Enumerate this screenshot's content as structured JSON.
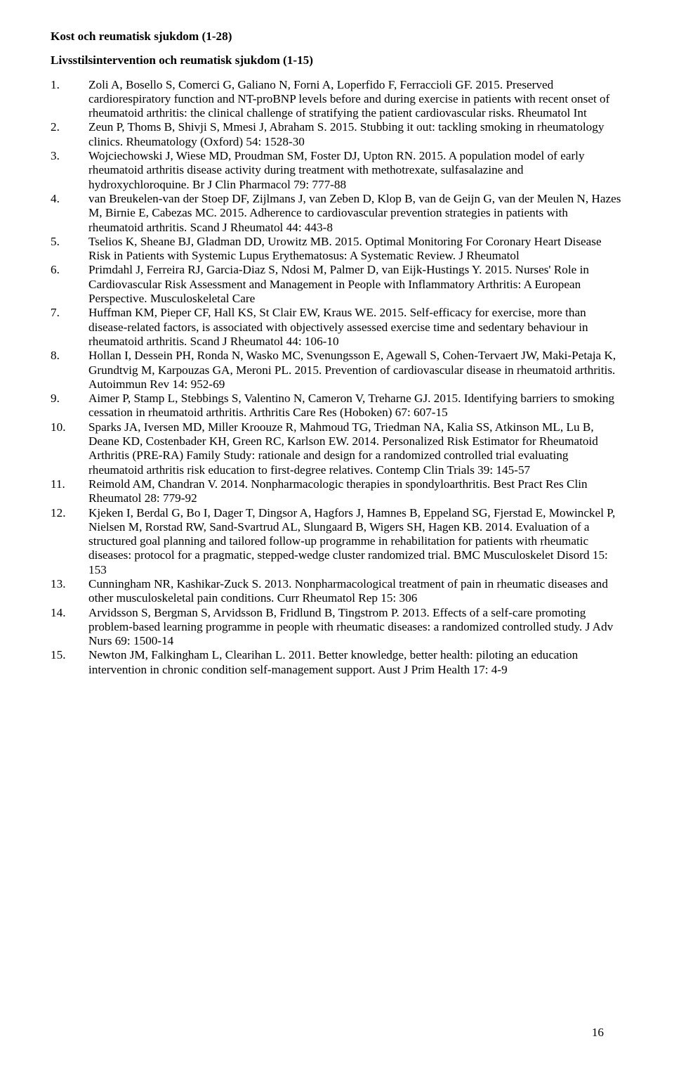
{
  "headings": {
    "main": "Kost och reumatisk sjukdom (1-28)",
    "sub": "Livsstilsintervention och reumatisk sjukdom (1-15)"
  },
  "page_number": "16",
  "references": [
    {
      "num": "1.",
      "text": "Zoli A, Bosello S, Comerci G, Galiano N, Forni A, Loperfido F, Ferraccioli GF. 2015. Preserved cardiorespiratory function and NT-proBNP levels before and during exercise in patients with recent onset of rheumatoid arthritis: the clinical challenge of stratifying the patient cardiovascular risks. Rheumatol Int"
    },
    {
      "num": "2.",
      "text": "Zeun P, Thoms B, Shivji S, Mmesi J, Abraham S. 2015. Stubbing it out: tackling smoking in rheumatology clinics. Rheumatology (Oxford) 54: 1528-30"
    },
    {
      "num": "3.",
      "text": "Wojciechowski J, Wiese MD, Proudman SM, Foster DJ, Upton RN. 2015. A population model of early rheumatoid arthritis disease activity during treatment with methotrexate, sulfasalazine and hydroxychloroquine. Br J Clin Pharmacol 79: 777-88"
    },
    {
      "num": "4.",
      "text": "van Breukelen-van der Stoep DF, Zijlmans J, van Zeben D, Klop B, van de Geijn G, van der Meulen N, Hazes M, Birnie E, Cabezas MC. 2015. Adherence to cardiovascular prevention strategies in patients with rheumatoid arthritis. Scand J Rheumatol 44: 443-8"
    },
    {
      "num": "5.",
      "text": "Tselios K, Sheane BJ, Gladman DD, Urowitz MB. 2015. Optimal Monitoring For Coronary Heart Disease Risk in Patients with Systemic Lupus Erythematosus: A Systematic Review. J Rheumatol"
    },
    {
      "num": "6.",
      "text": "Primdahl J, Ferreira RJ, Garcia-Diaz S, Ndosi M, Palmer D, van Eijk-Hustings Y. 2015. Nurses' Role in Cardiovascular Risk Assessment and Management in People with Inflammatory Arthritis: A European Perspective. Musculoskeletal Care"
    },
    {
      "num": "7.",
      "text": "Huffman KM, Pieper CF, Hall KS, St Clair EW, Kraus WE. 2015. Self-efficacy for exercise, more than disease-related factors, is associated with objectively assessed exercise time and sedentary behaviour in rheumatoid arthritis. Scand J Rheumatol 44: 106-10"
    },
    {
      "num": "8.",
      "text": "Hollan I, Dessein PH, Ronda N, Wasko MC, Svenungsson E, Agewall S, Cohen-Tervaert JW, Maki-Petaja K, Grundtvig M, Karpouzas GA, Meroni PL. 2015. Prevention of cardiovascular disease in rheumatoid arthritis. Autoimmun Rev 14: 952-69"
    },
    {
      "num": "9.",
      "text": "Aimer P, Stamp L, Stebbings S, Valentino N, Cameron V, Treharne GJ. 2015. Identifying barriers to smoking cessation in rheumatoid arthritis. Arthritis Care Res (Hoboken) 67: 607-15"
    },
    {
      "num": "10.",
      "text": "Sparks JA, Iversen MD, Miller Kroouze R, Mahmoud TG, Triedman NA, Kalia SS, Atkinson ML, Lu B, Deane KD, Costenbader KH, Green RC, Karlson EW. 2014. Personalized Risk Estimator for Rheumatoid Arthritis (PRE-RA) Family Study: rationale and design for a randomized controlled trial evaluating rheumatoid arthritis risk education to first-degree relatives. Contemp Clin Trials 39: 145-57"
    },
    {
      "num": "11.",
      "text": "Reimold AM, Chandran V. 2014. Nonpharmacologic therapies in spondyloarthritis. Best Pract Res Clin Rheumatol 28: 779-92"
    },
    {
      "num": "12.",
      "text": "Kjeken I, Berdal G, Bo I, Dager T, Dingsor A, Hagfors J, Hamnes B, Eppeland SG, Fjerstad E, Mowinckel P, Nielsen M, Rorstad RW, Sand-Svartrud AL, Slungaard B, Wigers SH, Hagen KB. 2014. Evaluation of a structured goal planning and tailored follow-up programme in rehabilitation for patients with rheumatic diseases: protocol for a pragmatic, stepped-wedge cluster randomized trial. BMC Musculoskelet Disord 15: 153"
    },
    {
      "num": "13.",
      "text": "Cunningham NR, Kashikar-Zuck S. 2013. Nonpharmacological treatment of pain in rheumatic diseases and other musculoskeletal pain conditions. Curr Rheumatol Rep 15: 306"
    },
    {
      "num": "14.",
      "text": "Arvidsson S, Bergman S, Arvidsson B, Fridlund B, Tingstrom P. 2013. Effects of a self-care promoting problem-based learning programme in people with rheumatic diseases: a randomized controlled study. J Adv Nurs 69: 1500-14"
    },
    {
      "num": "15.",
      "text": "Newton JM, Falkingham L, Clearihan L. 2011. Better knowledge, better health: piloting an education intervention in chronic condition self-management support. Aust J Prim Health 17: 4-9"
    }
  ]
}
